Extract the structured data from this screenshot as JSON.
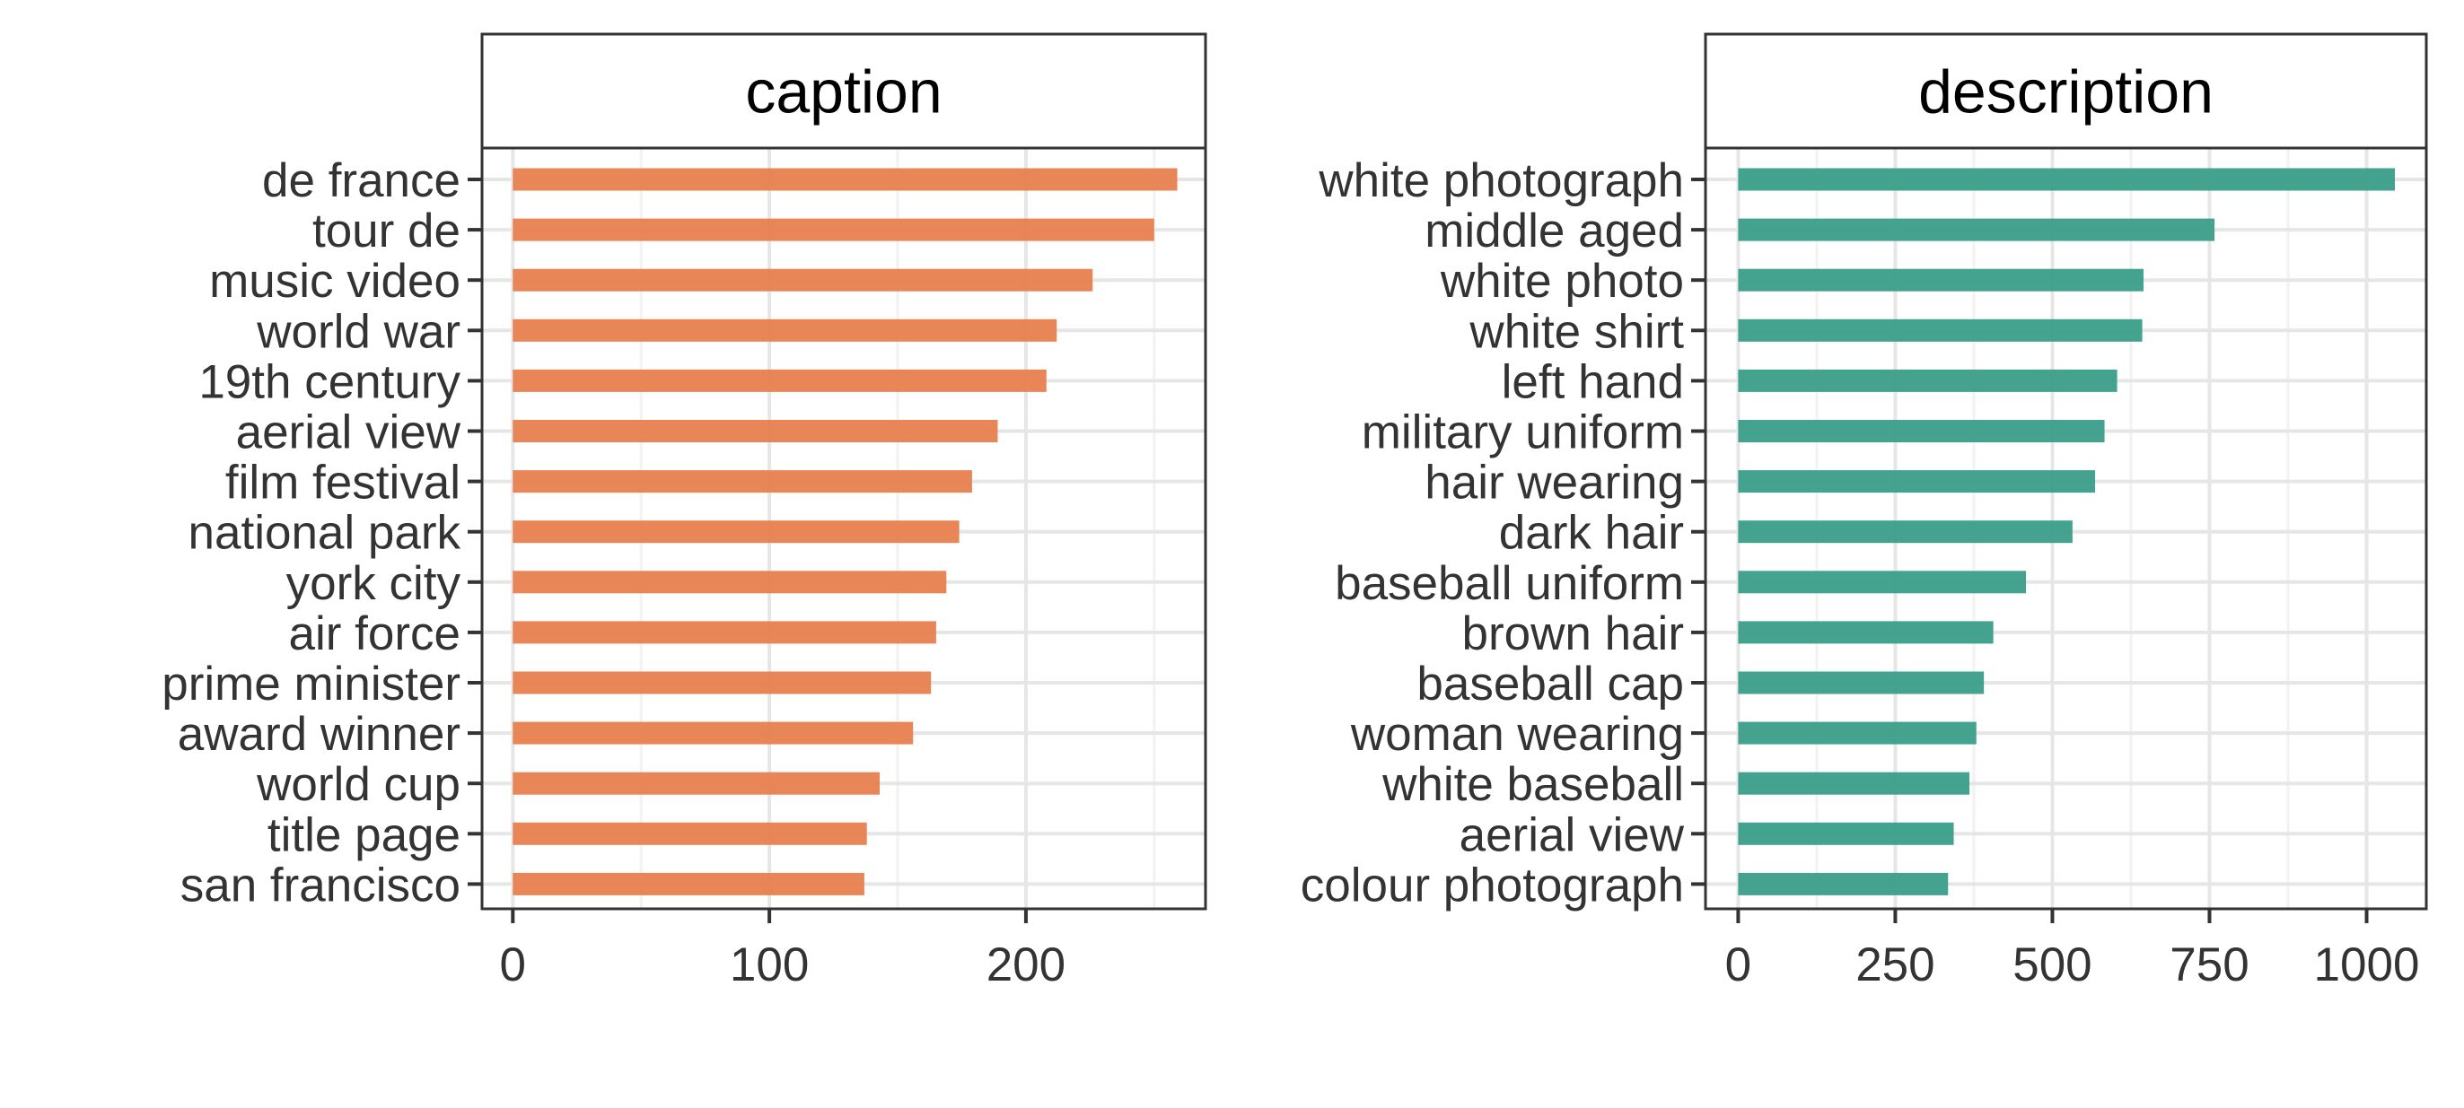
{
  "chart_data": [
    {
      "type": "bar",
      "orientation": "horizontal",
      "title": "caption",
      "color": "#E8804F",
      "xlim": [
        -12,
        270
      ],
      "xticks": [
        0,
        100,
        200
      ],
      "grid": true,
      "categories": [
        "de france",
        "tour de",
        "music video",
        "world war",
        "19th century",
        "aerial view",
        "film festival",
        "national park",
        "york city",
        "air force",
        "prime minister",
        "award winner",
        "world cup",
        "title page",
        "san francisco"
      ],
      "values": [
        259,
        250,
        226,
        212,
        208,
        189,
        179,
        174,
        169,
        165,
        163,
        156,
        143,
        138,
        137
      ]
    },
    {
      "type": "bar",
      "orientation": "horizontal",
      "title": "description",
      "color": "#3A9E88",
      "xlim": [
        -52,
        1095
      ],
      "xticks": [
        0,
        250,
        500,
        750,
        1000
      ],
      "grid": true,
      "categories": [
        "white photograph",
        "middle aged",
        "white photo",
        "white shirt",
        "left hand",
        "military uniform",
        "hair wearing",
        "dark hair",
        "baseball uniform",
        "brown hair",
        "baseball cap",
        "woman wearing",
        "white baseball",
        "aerial view",
        "colour photograph"
      ],
      "values": [
        1045,
        758,
        645,
        643,
        603,
        583,
        568,
        532,
        458,
        406,
        391,
        379,
        368,
        343,
        334
      ]
    }
  ]
}
